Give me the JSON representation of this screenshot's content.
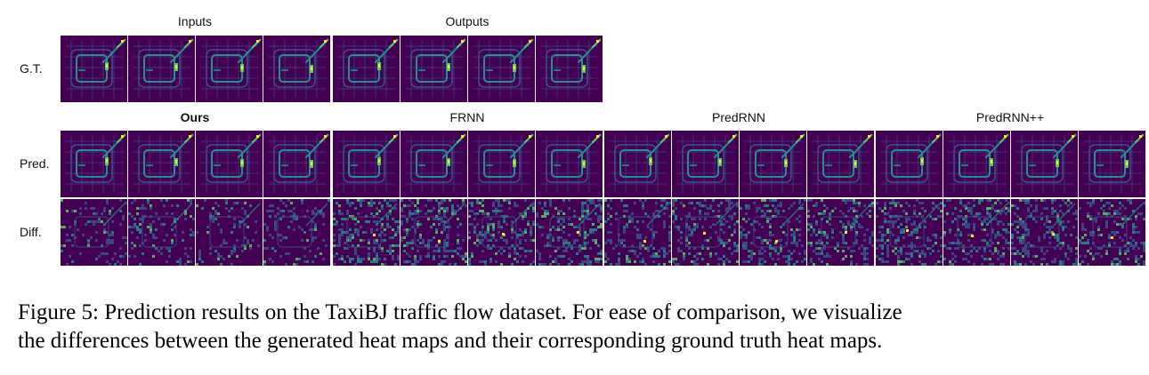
{
  "column_headers": {
    "inputs": "Inputs",
    "outputs": "Outputs",
    "ours": "Ours",
    "frnn": "FRNN",
    "predrnn": "PredRNN",
    "predrnnpp": "PredRNN++"
  },
  "row_labels": {
    "gt": "G.T.",
    "pred": "Pred.",
    "diff": "Diff."
  },
  "caption": {
    "line1": "Figure 5: Prediction results on the TaxiBJ traffic flow dataset. For ease of comparison, we visualize",
    "line2": "the differences between the generated heat maps and their corresponding ground truth heat maps."
  },
  "colormap": {
    "background": "#440154",
    "low": "#3b528b",
    "mid": "#21918c",
    "high": "#5ec962",
    "peak": "#fde725"
  }
}
